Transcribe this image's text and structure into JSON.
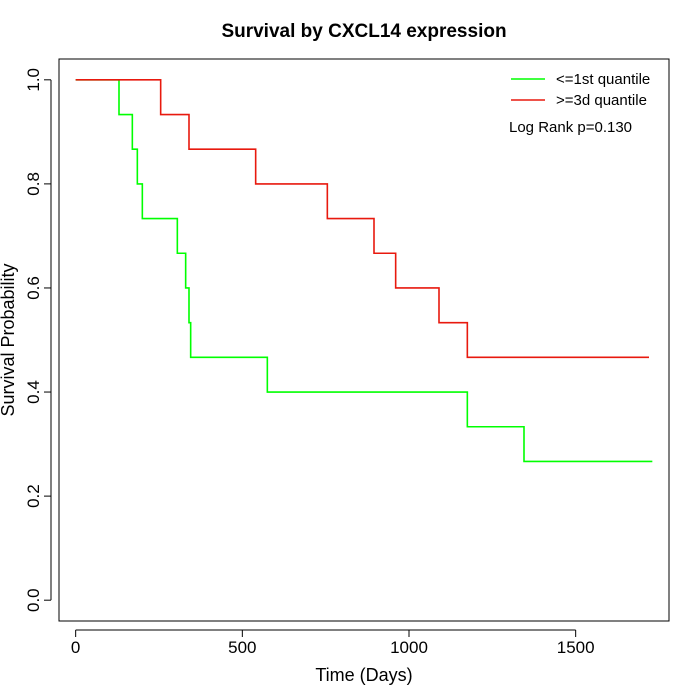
{
  "chart_data": {
    "type": "line",
    "title": "Survival by CXCL14 expression",
    "xlabel": "Time (Days)",
    "ylabel": "Survival Probability",
    "xlim": [
      -50,
      1780
    ],
    "ylim": [
      -0.04,
      1.04
    ],
    "xticks": [
      0,
      500,
      1000,
      1500
    ],
    "yticks": [
      0.0,
      0.2,
      0.4,
      0.6,
      0.8,
      1.0
    ],
    "xtick_labels": [
      "0",
      "500",
      "1000",
      "1500"
    ],
    "ytick_labels": [
      "0.0",
      "0.2",
      "0.4",
      "0.6",
      "0.8",
      "1.0"
    ],
    "grid": false,
    "legend_position": "top-right",
    "annotation": "Log Rank p=0.130",
    "series": [
      {
        "name": "<=1st quantile",
        "color": "#00ff00",
        "step": true,
        "x": [
          0,
          130,
          170,
          185,
          200,
          305,
          330,
          340,
          345,
          575,
          1175,
          1345,
          1730
        ],
        "y": [
          1.0,
          0.9333,
          0.8667,
          0.8,
          0.7333,
          0.6667,
          0.6,
          0.5333,
          0.4667,
          0.4,
          0.3333,
          0.2667,
          0.2667
        ]
      },
      {
        "name": ">=3d quantile",
        "color": "#e8190e",
        "step": true,
        "x": [
          0,
          255,
          340,
          540,
          755,
          895,
          960,
          1090,
          1175,
          1720
        ],
        "y": [
          1.0,
          0.9333,
          0.8667,
          0.8,
          0.7333,
          0.6667,
          0.6,
          0.5333,
          0.4667,
          0.4667
        ]
      }
    ]
  }
}
